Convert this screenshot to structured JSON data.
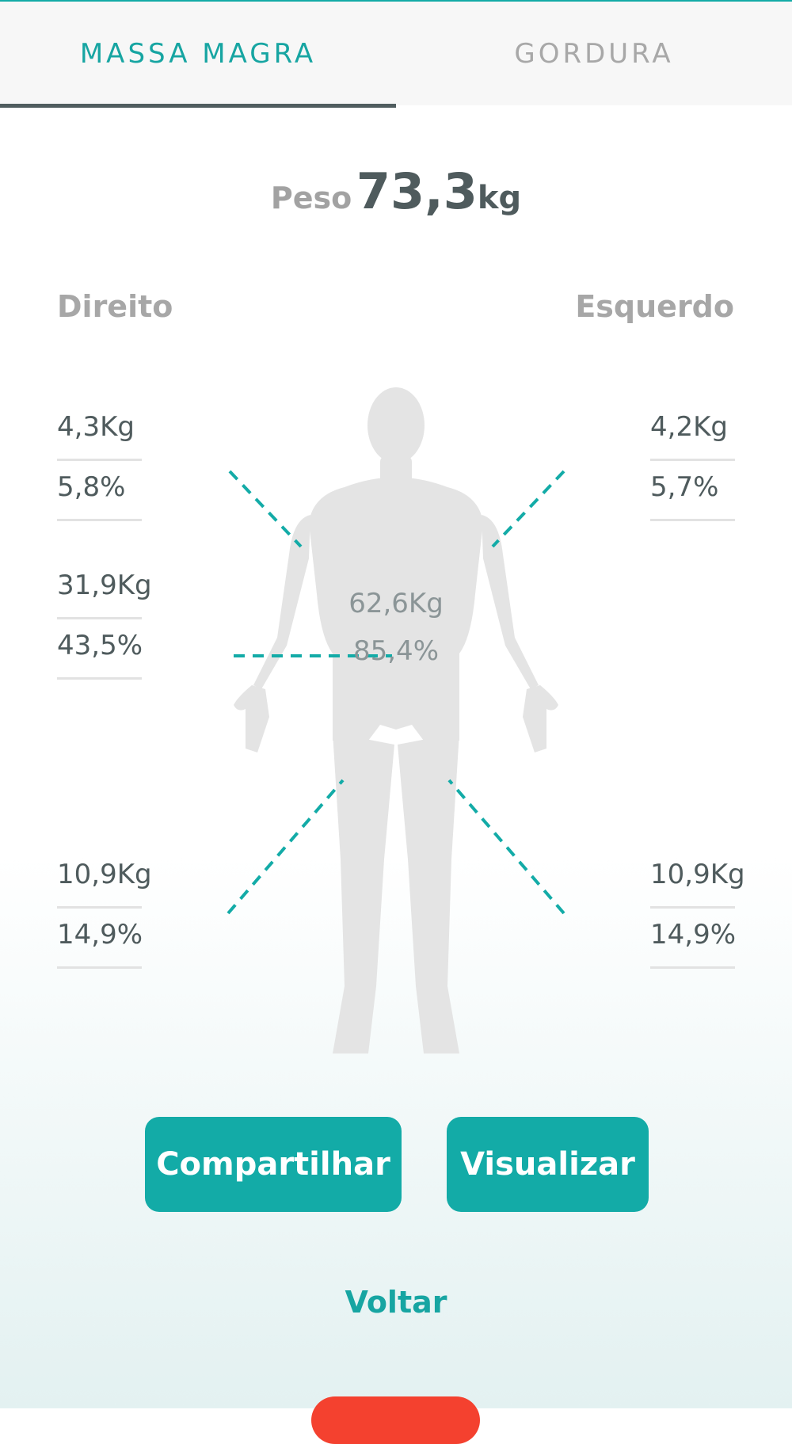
{
  "tabs": [
    {
      "label": "MASSA MAGRA",
      "active": true
    },
    {
      "label": "GORDURA",
      "active": false
    }
  ],
  "weight": {
    "label": "Peso",
    "value": "73,3",
    "unit": "kg"
  },
  "sides": {
    "right": "Direito",
    "left": "Esquerdo"
  },
  "segments": {
    "right_arm": {
      "kg": "4,3Kg",
      "pct": "5,8%"
    },
    "left_arm": {
      "kg": "4,2Kg",
      "pct": "5,7%"
    },
    "trunk_side": {
      "kg": "31,9Kg",
      "pct": "43,5%"
    },
    "trunk_center": {
      "kg": "62,6Kg",
      "pct": "85,4%"
    },
    "right_leg": {
      "kg": "10,9Kg",
      "pct": "14,9%"
    },
    "left_leg": {
      "kg": "10,9Kg",
      "pct": "14,9%"
    }
  },
  "buttons": {
    "share": "Compartilhar",
    "view": "Visualizar",
    "back": "Voltar"
  },
  "colors": {
    "accent": "#13aba7",
    "text": "#4f5b5d",
    "muted": "#a7a7a7",
    "figure": "#e4e4e4",
    "danger": "#f4412f"
  }
}
